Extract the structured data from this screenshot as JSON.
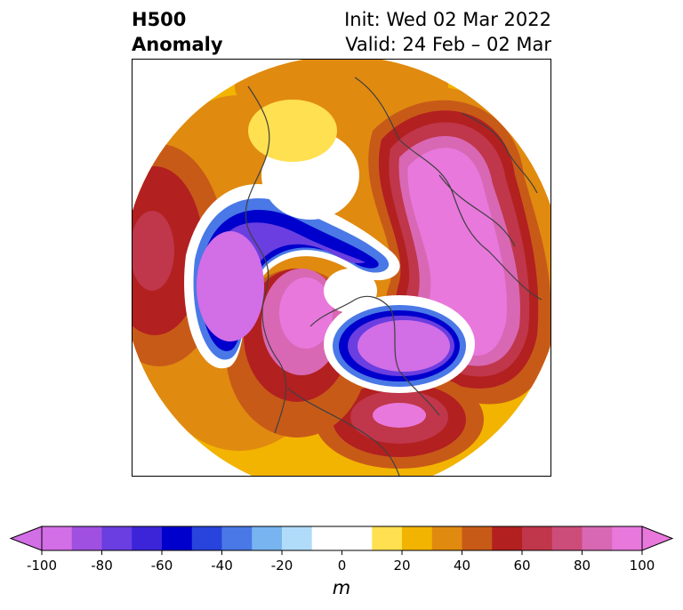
{
  "title": {
    "left_line1": "H500",
    "left_line2": "Anomaly",
    "right_line1": "Init: Wed 02 Mar 2022",
    "right_line2": "Valid: 24 Feb – 02 Mar"
  },
  "colorbar": {
    "unit": "m",
    "ticks": [
      "-100",
      "-80",
      "-60",
      "-40",
      "-20",
      "0",
      "20",
      "40",
      "60",
      "80",
      "100"
    ],
    "colors": [
      "#d26ee6",
      "#a050e0",
      "#6a3ee0",
      "#3c24d8",
      "#0000cc",
      "#2844dc",
      "#4a78e6",
      "#78b4f0",
      "#b0dcfa",
      "#ffffff",
      "#ffffff",
      "#ffe050",
      "#f2b400",
      "#e08a10",
      "#c85a18",
      "#b22020",
      "#c0364a",
      "#cc4c7a",
      "#d868b4",
      "#e878dc"
    ],
    "extend_low": "#d26ee6",
    "extend_high": "#e878dc"
  },
  "map": {
    "projection": "north polar stereographic",
    "field": "500 hPa geopotential height anomaly"
  }
}
